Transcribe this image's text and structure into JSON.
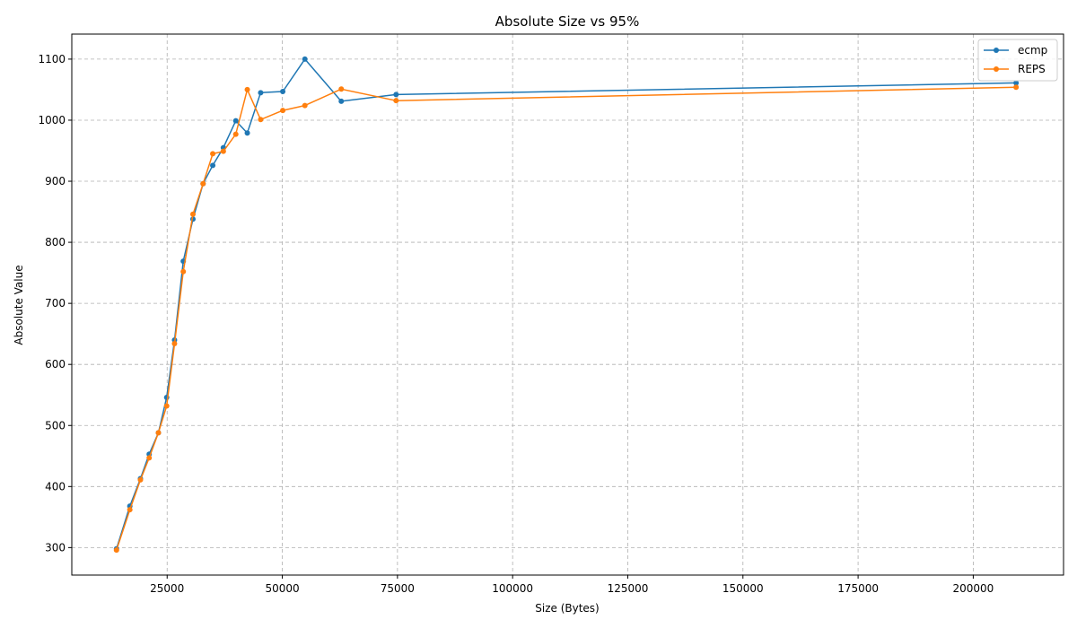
{
  "chart_data": {
    "type": "line",
    "title": "Absolute Size vs 95%",
    "xlabel": "Size (Bytes)",
    "ylabel": "Absolute Value",
    "xlim": [
      4300,
      219600
    ],
    "ylim": [
      255,
      1141
    ],
    "xticks": [
      25000,
      50000,
      75000,
      100000,
      125000,
      150000,
      175000,
      200000
    ],
    "yticks": [
      300,
      400,
      500,
      600,
      700,
      800,
      900,
      1000,
      1100
    ],
    "grid": true,
    "legend_position": "upper-right",
    "series": [
      {
        "name": "ecmp",
        "color": "#1f77b4",
        "x": [
          14000,
          16900,
          19200,
          21100,
          23100,
          24900,
          26600,
          28500,
          30600,
          32800,
          34900,
          37200,
          39900,
          42400,
          45300,
          50100,
          54900,
          62800,
          74700,
          209300
        ],
        "y": [
          298,
          368,
          413,
          453,
          488,
          546,
          640,
          769,
          838,
          896,
          926,
          955,
          999,
          979,
          1045,
          1047,
          1100,
          1031,
          1042,
          1061
        ]
      },
      {
        "name": "REPS",
        "color": "#ff7f0e",
        "x": [
          14000,
          16900,
          19200,
          21100,
          23100,
          24900,
          26600,
          28500,
          30600,
          32800,
          34900,
          37200,
          39900,
          42400,
          45300,
          50100,
          54900,
          62800,
          74700,
          209300
        ],
        "y": [
          296,
          362,
          411,
          447,
          488,
          532,
          634,
          752,
          846,
          896,
          945,
          949,
          977,
          1050,
          1001,
          1016,
          1024,
          1051,
          1032,
          1054
        ]
      }
    ]
  }
}
